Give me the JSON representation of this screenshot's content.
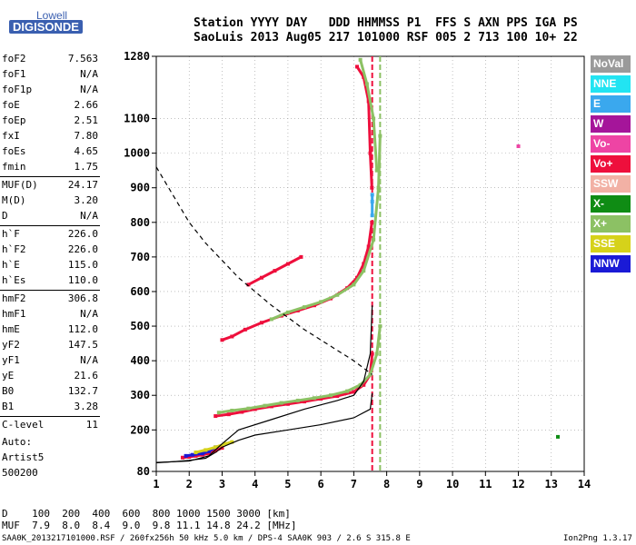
{
  "logo": {
    "line1": "Lowell",
    "line2": "DIGISONDE"
  },
  "header": {
    "row1": "Station YYYY DAY   DDD HHMMSS P1  FFS S AXN PPS IGA PS",
    "row2": "SaoLuis 2013 Aug05 217 101000 RSF 005 2 713 100 10+ 22"
  },
  "params": [
    {
      "k": "foF2",
      "v": "7.563"
    },
    {
      "k": "foF1",
      "v": "N/A"
    },
    {
      "k": "foF1p",
      "v": "N/A"
    },
    {
      "k": "foE",
      "v": "2.66"
    },
    {
      "k": "foEp",
      "v": "2.51"
    },
    {
      "k": "fxI",
      "v": "7.80"
    },
    {
      "k": "foEs",
      "v": "4.65"
    },
    {
      "k": "fmin",
      "v": "1.75"
    },
    {
      "k": "MUF(D)",
      "v": "24.17"
    },
    {
      "k": "M(D)",
      "v": "3.20"
    },
    {
      "k": "D",
      "v": "N/A"
    },
    {
      "k": "h`F",
      "v": "226.0"
    },
    {
      "k": "h`F2",
      "v": "226.0"
    },
    {
      "k": "h`E",
      "v": "115.0"
    },
    {
      "k": "h`Es",
      "v": "110.0"
    },
    {
      "k": "hmF2",
      "v": "306.8"
    },
    {
      "k": "hmF1",
      "v": "N/A"
    },
    {
      "k": "hmE",
      "v": "112.0"
    },
    {
      "k": "yF2",
      "v": "147.5"
    },
    {
      "k": "yF1",
      "v": "N/A"
    },
    {
      "k": "yE",
      "v": "21.6"
    },
    {
      "k": "B0",
      "v": "132.7"
    },
    {
      "k": "B1",
      "v": "3.28"
    },
    {
      "k": "C-level",
      "v": "11"
    }
  ],
  "auto": {
    "line1": "Auto:",
    "line2": "Artist5",
    "line3": "500200"
  },
  "legend": [
    {
      "label": "NoVal",
      "color": "#9a9a9a"
    },
    {
      "label": "NNE",
      "color": "#22e4f2"
    },
    {
      "label": "E",
      "color": "#3aa8ee"
    },
    {
      "label": "W",
      "color": "#a5159a"
    },
    {
      "label": "Vo-",
      "color": "#ee44a4"
    },
    {
      "label": "Vo+",
      "color": "#ee0f3c"
    },
    {
      "label": "SSW",
      "color": "#f2b1a5"
    },
    {
      "label": "X-",
      "color": "#0f8c14"
    },
    {
      "label": "X+",
      "color": "#8cc164"
    },
    {
      "label": "SSE",
      "color": "#d6d21a"
    },
    {
      "label": "NNW",
      "color": "#1a1ad6"
    }
  ],
  "footer": {
    "d_row": "D    100  200  400  600  800 1000 1500 3000 [km]",
    "muf_row": "MUF  7.9  8.0  8.4  9.0  9.8 11.1 14.8 24.2 [MHz]",
    "source": "SAA0K_2013217101000.RSF / 260fx256h 50 kHz 5.0 km / DPS-4 SAA0K 903 / 2.6 S 315.8 E",
    "version": "Ion2Png 1.3.17"
  },
  "chart_data": {
    "type": "scatter",
    "xlim": [
      1,
      14
    ],
    "ylim": [
      80,
      1280
    ],
    "x_ticks": [
      1,
      2,
      3,
      4,
      5,
      6,
      7,
      8,
      9,
      10,
      11,
      12,
      13,
      14
    ],
    "y_ticks": [
      80,
      200,
      300,
      400,
      500,
      600,
      700,
      800,
      900,
      1000,
      1100,
      1280
    ],
    "y_labels": [
      "80",
      "200",
      "300",
      "400",
      "500",
      "600",
      "700",
      "800",
      "900",
      "1000",
      "1100",
      "1280"
    ],
    "grid": true,
    "verticals": [
      7.56,
      7.8
    ],
    "series": [
      {
        "color": "#ee0f3c",
        "points": [
          [
            2.8,
            240
          ],
          [
            3.2,
            245
          ],
          [
            3.6,
            252
          ],
          [
            4.0,
            260
          ],
          [
            4.5,
            268
          ],
          [
            5.0,
            275
          ],
          [
            5.5,
            282
          ],
          [
            6.0,
            290
          ],
          [
            6.5,
            298
          ],
          [
            7.0,
            310
          ],
          [
            7.3,
            330
          ],
          [
            7.5,
            360
          ],
          [
            7.56,
            420
          ]
        ]
      },
      {
        "color": "#8cc164",
        "points": [
          [
            2.9,
            250
          ],
          [
            3.3,
            256
          ],
          [
            3.8,
            262
          ],
          [
            4.3,
            270
          ],
          [
            4.8,
            278
          ],
          [
            5.3,
            285
          ],
          [
            5.8,
            292
          ],
          [
            6.3,
            300
          ],
          [
            6.8,
            312
          ],
          [
            7.2,
            330
          ],
          [
            7.5,
            360
          ],
          [
            7.7,
            420
          ],
          [
            7.8,
            500
          ]
        ]
      },
      {
        "color": "#ee0f3c",
        "points": [
          [
            3.0,
            460
          ],
          [
            3.3,
            470
          ],
          [
            3.7,
            490
          ],
          [
            4.2,
            510
          ],
          [
            4.8,
            530
          ],
          [
            5.3,
            545
          ],
          [
            5.8,
            560
          ],
          [
            6.3,
            580
          ],
          [
            6.8,
            610
          ],
          [
            7.1,
            640
          ],
          [
            7.3,
            680
          ],
          [
            7.45,
            730
          ],
          [
            7.55,
            800
          ]
        ]
      },
      {
        "color": "#8cc164",
        "points": [
          [
            4.5,
            520
          ],
          [
            5.0,
            540
          ],
          [
            5.5,
            555
          ],
          [
            6.0,
            570
          ],
          [
            6.5,
            590
          ],
          [
            7.0,
            620
          ],
          [
            7.3,
            660
          ],
          [
            7.6,
            750
          ],
          [
            7.75,
            900
          ],
          [
            7.8,
            1050
          ]
        ]
      },
      {
        "color": "#ee0f3c",
        "points": [
          [
            3.8,
            620
          ],
          [
            4.2,
            640
          ],
          [
            4.6,
            660
          ],
          [
            5.0,
            680
          ],
          [
            5.4,
            700
          ]
        ]
      },
      {
        "color": "#ee0f3c",
        "points": [
          [
            7.1,
            1250
          ],
          [
            7.3,
            1220
          ],
          [
            7.45,
            1150
          ],
          [
            7.5,
            1000
          ],
          [
            7.55,
            900
          ]
        ]
      },
      {
        "color": "#8cc164",
        "points": [
          [
            7.2,
            1270
          ],
          [
            7.4,
            1200
          ],
          [
            7.6,
            1100
          ],
          [
            7.7,
            950
          ]
        ]
      },
      {
        "color": "#ee0f3c",
        "points": [
          [
            1.8,
            120
          ],
          [
            2.0,
            122
          ],
          [
            2.2,
            125
          ],
          [
            2.4,
            128
          ],
          [
            2.6,
            132
          ],
          [
            2.8,
            140
          ],
          [
            3.0,
            148
          ]
        ]
      },
      {
        "color": "#1a1ad6",
        "points": [
          [
            1.9,
            125
          ],
          [
            2.1,
            128
          ],
          [
            2.4,
            132
          ],
          [
            2.6,
            138
          ],
          [
            2.8,
            150
          ]
        ]
      },
      {
        "color": "#d6d21a",
        "points": [
          [
            2.2,
            135
          ],
          [
            2.5,
            142
          ],
          [
            2.8,
            150
          ],
          [
            3.1,
            160
          ],
          [
            3.3,
            165
          ]
        ]
      },
      {
        "color": "#3aa8ee",
        "points": [
          [
            7.56,
            820
          ],
          [
            7.56,
            860
          ],
          [
            7.56,
            880
          ]
        ]
      },
      {
        "color": "#ee44a4",
        "points": [
          [
            12.0,
            1020
          ]
        ]
      },
      {
        "color": "#0f8c14",
        "points": [
          [
            13.2,
            180
          ]
        ]
      }
    ],
    "profile_curve": [
      [
        1,
        105
      ],
      [
        1.5,
        108
      ],
      [
        2.0,
        112
      ],
      [
        2.5,
        118
      ],
      [
        2.8,
        135
      ],
      [
        3.0,
        150
      ],
      [
        3.5,
        170
      ],
      [
        4.0,
        185
      ],
      [
        5.0,
        200
      ],
      [
        6.0,
        215
      ],
      [
        7.0,
        235
      ],
      [
        7.5,
        260
      ],
      [
        7.56,
        306
      ]
    ],
    "virtual_curve": [
      [
        1,
        106
      ],
      [
        2,
        110
      ],
      [
        2.6,
        125
      ],
      [
        3.0,
        160
      ],
      [
        3.5,
        200
      ],
      [
        4.5,
        230
      ],
      [
        5.5,
        260
      ],
      [
        6.5,
        285
      ],
      [
        7.0,
        300
      ],
      [
        7.3,
        340
      ],
      [
        7.5,
        420
      ],
      [
        7.56,
        560
      ]
    ],
    "muf_curve": [
      [
        1,
        960
      ],
      [
        1.5,
        880
      ],
      [
        2.0,
        800
      ],
      [
        2.5,
        740
      ],
      [
        3.0,
        690
      ],
      [
        3.5,
        640
      ],
      [
        4.0,
        600
      ],
      [
        4.5,
        560
      ],
      [
        5.0,
        525
      ],
      [
        5.5,
        490
      ],
      [
        6.0,
        460
      ],
      [
        6.5,
        430
      ],
      [
        7.0,
        400
      ],
      [
        7.56,
        360
      ]
    ]
  }
}
